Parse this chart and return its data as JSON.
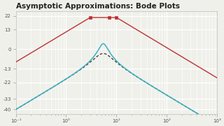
{
  "title": "Asymptotic Approximations: Bode Plots",
  "title_fontsize": 7.5,
  "xlim": [
    0.1,
    1000
  ],
  "ylim": [
    -43,
    25
  ],
  "yticks": [
    -40,
    -33,
    -22,
    -13,
    0,
    13,
    22
  ],
  "xtick_vals": [
    0.1,
    1.0,
    10.0,
    100.0,
    1000.0
  ],
  "xtick_labels": [
    "10⁻¹",
    "10⁰",
    "10¹",
    "10²",
    "10³"
  ],
  "background_color": "#f0f0eb",
  "grid_color": "#ffffff",
  "color_actual": "#3ab0c0",
  "color_asymptote": "#c03030",
  "color_approx": "#303030",
  "marker_color": "#c03030",
  "marker_size": 3.5,
  "omega1": 3.0,
  "omega2": 10.0,
  "peak_dB": 21.0,
  "slope_low": 20.0,
  "slope_high": -20.0,
  "zeta_actual": 0.18,
  "zeta_approx": 0.38
}
